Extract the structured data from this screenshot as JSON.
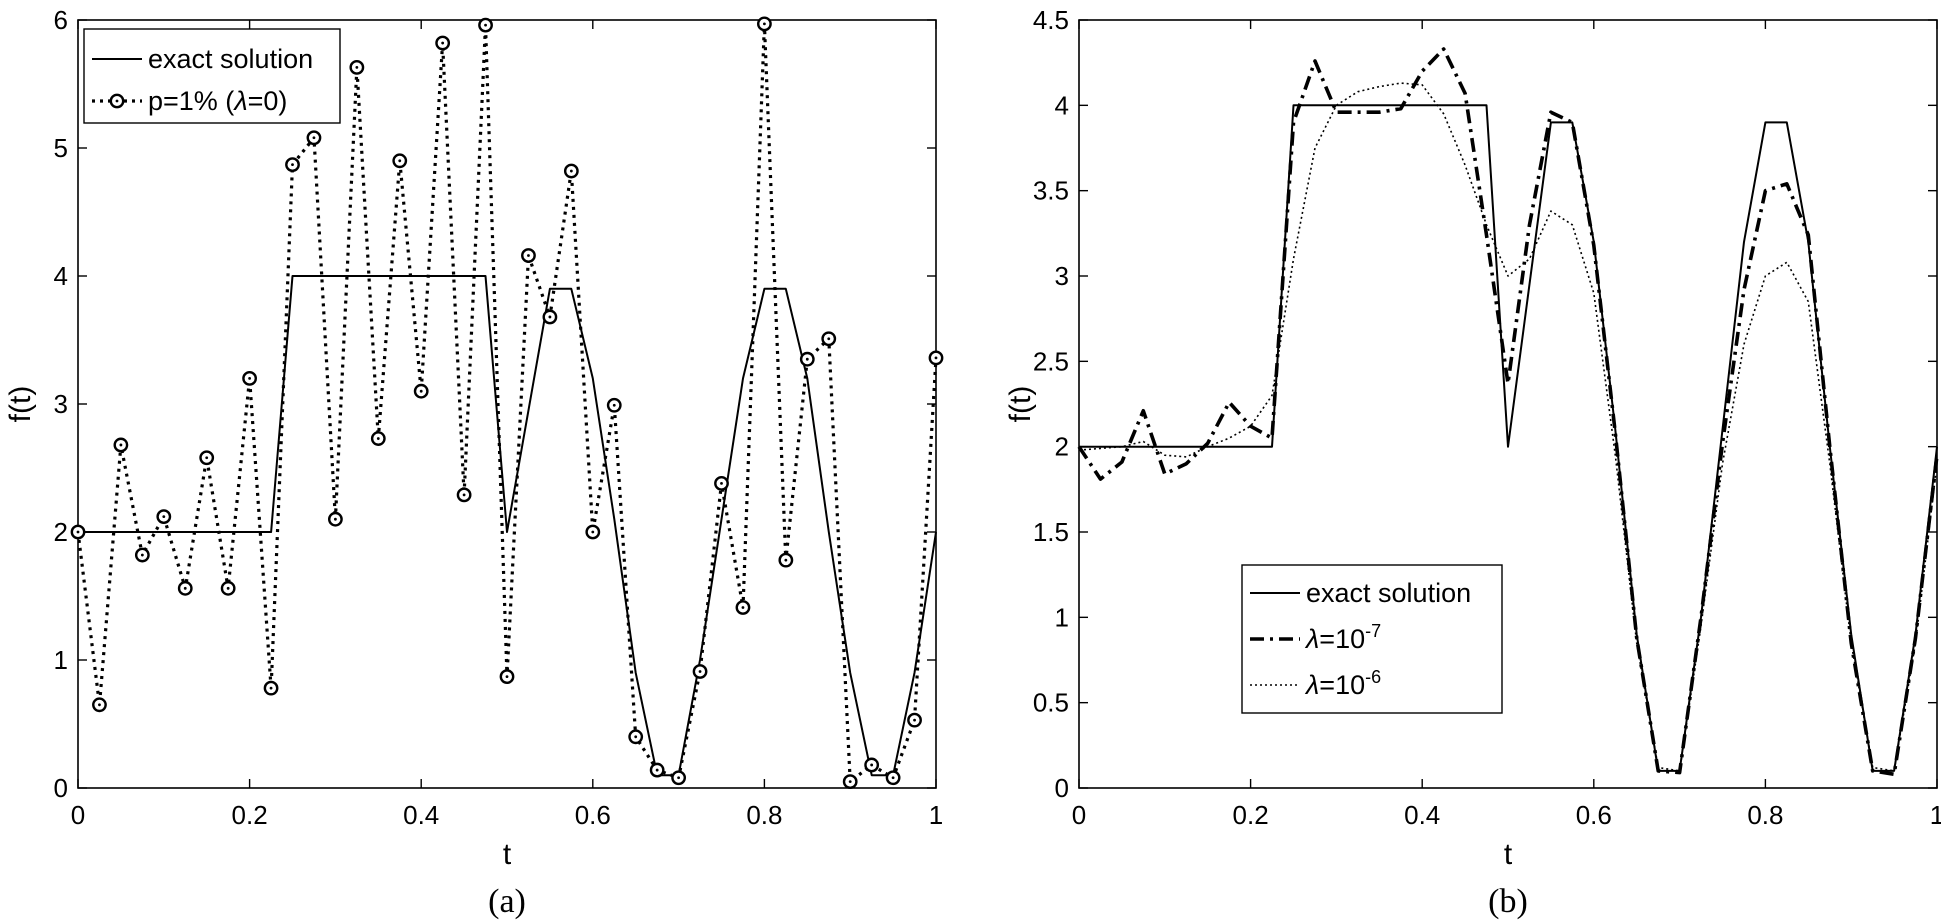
{
  "chart_data": [
    {
      "type": "line",
      "caption": "(a)",
      "xlabel": "t",
      "ylabel": "f(t)",
      "xlim": [
        0,
        1
      ],
      "ylim": [
        0,
        6
      ],
      "xticks": [
        0,
        0.2,
        0.4,
        0.6,
        0.8,
        1
      ],
      "xtick_labels": [
        "0",
        "0.2",
        "0.4",
        "0.6",
        "0.8",
        "1"
      ],
      "yticks": [
        0,
        1,
        2,
        3,
        4,
        5,
        6
      ],
      "ytick_labels": [
        "0",
        "1",
        "2",
        "3",
        "4",
        "5",
        "6"
      ],
      "grid": false,
      "legend_position": "top-left",
      "series": [
        {
          "name": "exact solution",
          "style": "solid",
          "x": [
            0,
            0.225,
            0.25,
            0.475,
            0.5,
            0.55,
            0.575,
            0.6,
            0.625,
            0.65,
            0.675,
            0.7,
            0.725,
            0.75,
            0.775,
            0.8,
            0.825,
            0.85,
            0.875,
            0.9,
            0.925,
            0.95,
            0.975,
            1
          ],
          "y": [
            2,
            2,
            4,
            4,
            2,
            3.9,
            3.9,
            3.2,
            2.1,
            0.9,
            0.1,
            0.1,
            1.0,
            2.1,
            3.2,
            3.9,
            3.9,
            3.2,
            2.0,
            0.9,
            0.1,
            0.1,
            0.9,
            2.0
          ]
        },
        {
          "name_prefix": "p=1% (",
          "name_symbol": "λ",
          "name_suffix": "=0)",
          "style": "dotted-circle",
          "x": [
            0,
            0.025,
            0.05,
            0.075,
            0.1,
            0.125,
            0.15,
            0.175,
            0.2,
            0.225,
            0.25,
            0.275,
            0.3,
            0.325,
            0.35,
            0.375,
            0.4,
            0.425,
            0.45,
            0.475,
            0.5,
            0.525,
            0.55,
            0.575,
            0.6,
            0.625,
            0.65,
            0.675,
            0.7,
            0.725,
            0.75,
            0.775,
            0.8,
            0.825,
            0.85,
            0.875,
            0.9,
            0.925,
            0.95,
            0.975,
            1
          ],
          "y": [
            2.0,
            0.65,
            2.68,
            1.82,
            2.12,
            1.56,
            2.58,
            1.56,
            3.2,
            0.78,
            4.87,
            5.08,
            2.1,
            5.63,
            2.73,
            4.9,
            3.1,
            5.82,
            2.29,
            5.96,
            0.87,
            4.16,
            3.68,
            4.82,
            2.0,
            2.99,
            0.4,
            0.14,
            0.08,
            0.91,
            2.38,
            1.41,
            5.97,
            1.78,
            3.35,
            3.51,
            0.05,
            0.18,
            0.08,
            0.53,
            3.36
          ]
        }
      ]
    },
    {
      "type": "line",
      "caption": "(b)",
      "xlabel": "t",
      "ylabel": "f(t)",
      "xlim": [
        0,
        1
      ],
      "ylim": [
        0,
        4.5
      ],
      "xticks": [
        0,
        0.2,
        0.4,
        0.6,
        0.8,
        1
      ],
      "xtick_labels": [
        "0",
        "0.2",
        "0.4",
        "0.6",
        "0.8",
        "1"
      ],
      "yticks": [
        0,
        0.5,
        1,
        1.5,
        2,
        2.5,
        3,
        3.5,
        4,
        4.5
      ],
      "ytick_labels": [
        "0",
        "0.5",
        "1",
        "1.5",
        "2",
        "2.5",
        "3",
        "3.5",
        "4",
        "4.5"
      ],
      "grid": false,
      "legend_position": "middle-left",
      "series": [
        {
          "name": "exact solution",
          "style": "solid",
          "x": [
            0,
            0.225,
            0.25,
            0.475,
            0.5,
            0.55,
            0.575,
            0.6,
            0.625,
            0.65,
            0.675,
            0.7,
            0.725,
            0.75,
            0.775,
            0.8,
            0.825,
            0.85,
            0.875,
            0.9,
            0.925,
            0.95,
            0.975,
            1
          ],
          "y": [
            2,
            2,
            4,
            4,
            2,
            3.9,
            3.9,
            3.2,
            2.1,
            0.9,
            0.1,
            0.1,
            1.0,
            2.1,
            3.2,
            3.9,
            3.9,
            3.2,
            2.0,
            0.9,
            0.1,
            0.1,
            0.9,
            2.0
          ]
        },
        {
          "name_prefix": "",
          "name_symbol": "λ",
          "name_suffix": "=10",
          "name_exponent": "-7",
          "style": "dashdot",
          "x": [
            0,
            0.025,
            0.05,
            0.075,
            0.1,
            0.125,
            0.15,
            0.175,
            0.2,
            0.225,
            0.25,
            0.275,
            0.3,
            0.325,
            0.35,
            0.375,
            0.4,
            0.425,
            0.45,
            0.475,
            0.5,
            0.525,
            0.55,
            0.575,
            0.6,
            0.625,
            0.65,
            0.675,
            0.7,
            0.725,
            0.75,
            0.775,
            0.8,
            0.825,
            0.85,
            0.875,
            0.9,
            0.925,
            0.95,
            0.975,
            1
          ],
          "y": [
            2.0,
            1.81,
            1.91,
            2.21,
            1.84,
            1.9,
            2.02,
            2.26,
            2.12,
            2.05,
            3.9,
            4.26,
            3.96,
            3.96,
            3.96,
            3.98,
            4.2,
            4.33,
            4.07,
            3.24,
            2.37,
            3.3,
            3.96,
            3.9,
            3.18,
            2.08,
            0.88,
            0.1,
            0.09,
            1.0,
            2.02,
            2.92,
            3.5,
            3.54,
            3.24,
            2.0,
            0.85,
            0.1,
            0.08,
            0.88,
            1.95
          ]
        },
        {
          "name_prefix": "",
          "name_symbol": "λ",
          "name_suffix": "=10",
          "name_exponent": "-6",
          "style": "dotted",
          "x": [
            0,
            0.025,
            0.05,
            0.075,
            0.1,
            0.125,
            0.15,
            0.175,
            0.2,
            0.225,
            0.25,
            0.275,
            0.3,
            0.325,
            0.35,
            0.375,
            0.4,
            0.425,
            0.45,
            0.475,
            0.5,
            0.525,
            0.55,
            0.575,
            0.6,
            0.625,
            0.65,
            0.675,
            0.7,
            0.725,
            0.75,
            0.775,
            0.8,
            0.825,
            0.85,
            0.875,
            0.9,
            0.925,
            0.95,
            0.975,
            1
          ],
          "y": [
            1.98,
            1.99,
            2.0,
            2.03,
            1.95,
            1.94,
            2.0,
            2.05,
            2.12,
            2.3,
            3.1,
            3.75,
            4.0,
            4.08,
            4.11,
            4.13,
            4.12,
            3.95,
            3.65,
            3.3,
            3.0,
            3.1,
            3.38,
            3.3,
            2.9,
            1.95,
            0.85,
            0.12,
            0.1,
            0.95,
            1.9,
            2.6,
            3.0,
            3.08,
            2.85,
            1.9,
            0.85,
            0.12,
            0.1,
            0.85,
            1.9
          ]
        }
      ]
    }
  ]
}
